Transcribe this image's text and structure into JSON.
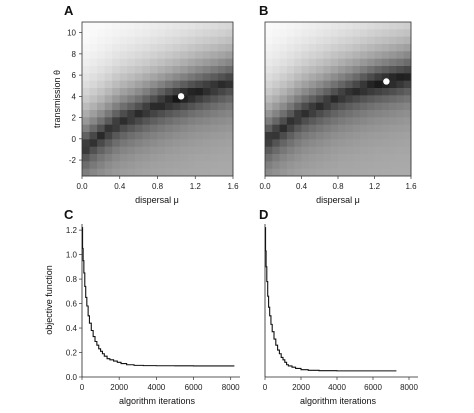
{
  "chart_data": [
    {
      "panel": "A",
      "type": "heatmap",
      "xlabel": "dispersal μ",
      "ylabel": "transmission θ",
      "xlim": [
        0,
        1.6
      ],
      "ylim": [
        -3.5,
        11
      ],
      "x_ticks": [
        "0.0",
        "0.4",
        "0.8",
        "1.2",
        "1.6"
      ],
      "y_ticks": [
        "-2",
        "0",
        "2",
        "4",
        "6",
        "8",
        "10"
      ],
      "grid": false,
      "colormap": "grayscale, dark = low objective value",
      "valley": [
        [
          0.0,
          -1.0
        ],
        [
          0.4,
          1.6
        ],
        [
          0.8,
          3.1
        ],
        [
          1.2,
          4.4
        ],
        [
          1.6,
          5.4
        ]
      ],
      "optimum": {
        "x": 1.05,
        "y": 4.0
      },
      "highlight_color": "#ffffff"
    },
    {
      "panel": "B",
      "type": "heatmap",
      "xlabel": "dispersal μ",
      "ylabel": "",
      "xlim": [
        0,
        1.6
      ],
      "ylim": [
        -3.5,
        11
      ],
      "x_ticks": [
        "0.0",
        "0.4",
        "0.8",
        "1.2",
        "1.6"
      ],
      "y_ticks": [],
      "grid": false,
      "colormap": "grayscale, dark = low objective value",
      "valley": [
        [
          0.0,
          -0.2
        ],
        [
          0.4,
          2.3
        ],
        [
          0.8,
          3.9
        ],
        [
          1.2,
          5.1
        ],
        [
          1.6,
          6.0
        ]
      ],
      "optimum": {
        "x": 1.33,
        "y": 5.4
      },
      "highlight_color": "#ffffff"
    },
    {
      "panel": "C",
      "type": "line",
      "xlabel": "algorithm iterations",
      "ylabel": "objective function",
      "xlim": [
        0,
        8500
      ],
      "ylim": [
        0,
        1.25
      ],
      "x_ticks": [
        "0",
        "2000",
        "4000",
        "6000",
        "8000"
      ],
      "y_ticks": [
        "0.0",
        "0.2",
        "0.4",
        "0.6",
        "0.8",
        "1.0",
        "1.2"
      ],
      "grid": false,
      "series": [
        {
          "x": [
            0,
            30,
            60,
            100,
            150,
            200,
            260,
            330,
            400,
            500,
            600,
            700,
            800,
            900,
            1000,
            1100,
            1200,
            1350,
            1500,
            1700,
            1900,
            2100,
            2400,
            2800,
            3300,
            4000,
            5000,
            6000,
            7000,
            8200
          ],
          "y": [
            1.22,
            1.05,
            0.95,
            0.85,
            0.74,
            0.65,
            0.58,
            0.5,
            0.44,
            0.38,
            0.33,
            0.29,
            0.26,
            0.23,
            0.21,
            0.19,
            0.17,
            0.15,
            0.14,
            0.13,
            0.12,
            0.11,
            0.1,
            0.095,
            0.093,
            0.092,
            0.091,
            0.09,
            0.09,
            0.09
          ]
        }
      ]
    },
    {
      "panel": "D",
      "type": "line",
      "xlabel": "algorithm iterations",
      "ylabel": "",
      "xlim": [
        0,
        8500
      ],
      "ylim": [
        0,
        1.25
      ],
      "x_ticks": [
        "0",
        "2000",
        "4000",
        "6000",
        "8000"
      ],
      "y_ticks": [],
      "grid": false,
      "series": [
        {
          "x": [
            0,
            30,
            60,
            100,
            150,
            200,
            260,
            330,
            400,
            500,
            600,
            700,
            800,
            900,
            1000,
            1100,
            1200,
            1300,
            1500,
            1700,
            2000,
            2400,
            3000,
            4000,
            5000,
            6000,
            7300
          ],
          "y": [
            1.22,
            1.03,
            0.9,
            0.78,
            0.66,
            0.57,
            0.5,
            0.43,
            0.37,
            0.31,
            0.26,
            0.22,
            0.19,
            0.16,
            0.14,
            0.12,
            0.1,
            0.09,
            0.08,
            0.07,
            0.06,
            0.055,
            0.052,
            0.05,
            0.05,
            0.05,
            0.05
          ]
        }
      ]
    }
  ]
}
